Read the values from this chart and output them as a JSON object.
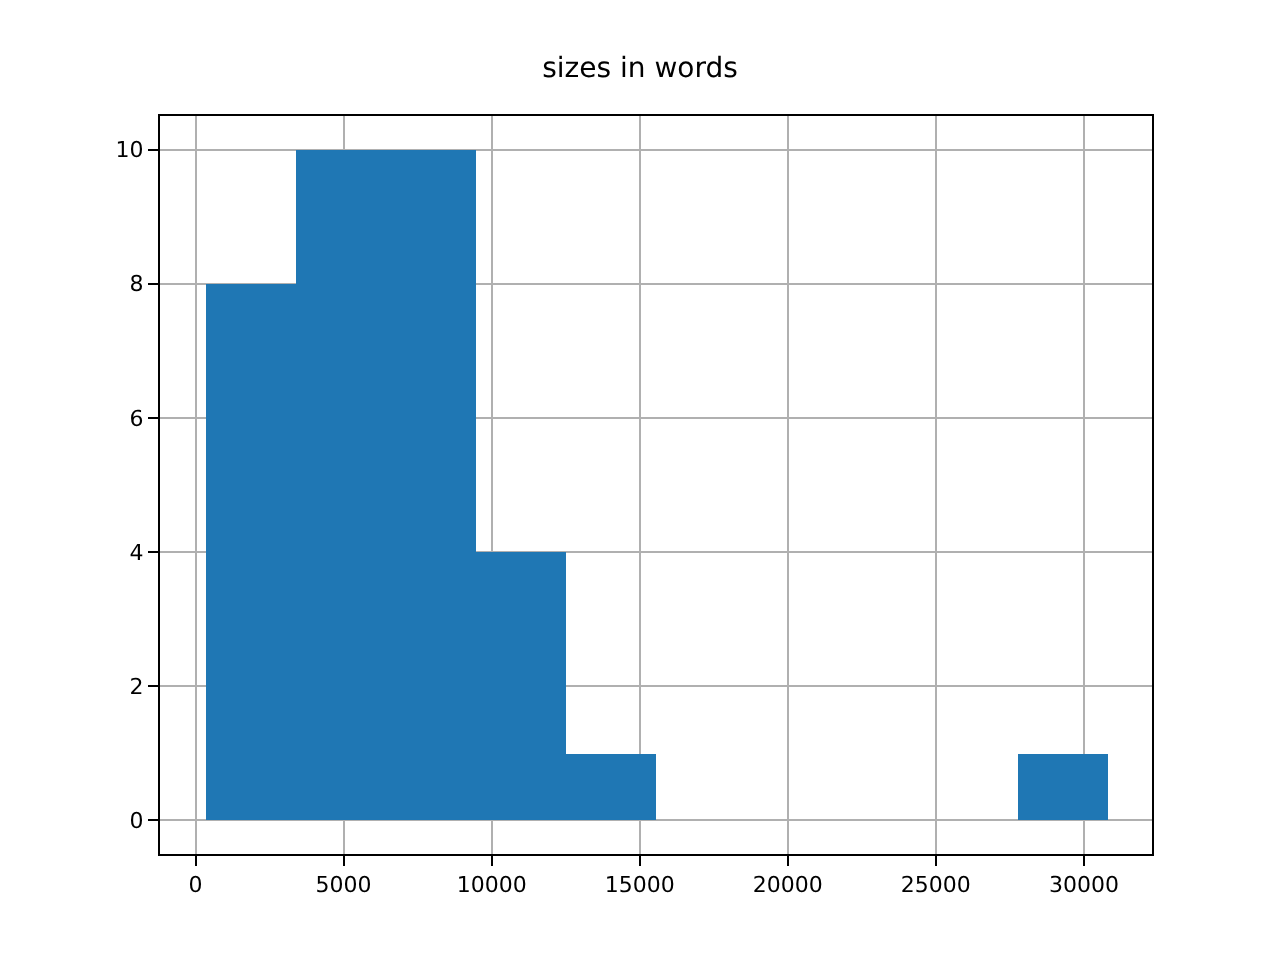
{
  "chart_data": {
    "type": "histogram",
    "title": "sizes in words",
    "bins": [
      340,
      3385,
      6430,
      9475,
      12520,
      15565,
      18610,
      21655,
      24700,
      27745,
      30790
    ],
    "values": [
      8,
      10,
      10,
      4,
      1,
      0,
      0,
      0,
      0,
      1
    ],
    "color": "#1f77b4",
    "xlim": [
      -1200,
      32300
    ],
    "xticks": [
      0,
      5000,
      10000,
      15000,
      20000,
      25000,
      30000
    ],
    "ylim": [
      -0.5,
      10.5
    ],
    "yticks": [
      0,
      2,
      4,
      6,
      8,
      10
    ],
    "grid": true
  }
}
